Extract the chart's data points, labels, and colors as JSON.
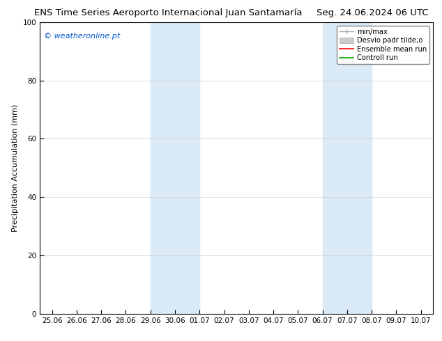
{
  "title_left": "ENS Time Series Aeroporto Internacional Juan Santamaría",
  "title_right": "Seg. 24.06.2024 06 UTC",
  "ylabel": "Precipitation Accumulation (mm)",
  "ylim": [
    0,
    100
  ],
  "yticks": [
    0,
    20,
    40,
    60,
    80,
    100
  ],
  "xtick_labels": [
    "25.06",
    "26.06",
    "27.06",
    "28.06",
    "29.06",
    "30.06",
    "01.07",
    "02.07",
    "03.07",
    "04.07",
    "05.07",
    "06.07",
    "07.07",
    "08.07",
    "09.07",
    "10.07"
  ],
  "xtick_positions": [
    0,
    1,
    2,
    3,
    4,
    5,
    6,
    7,
    8,
    9,
    10,
    11,
    12,
    13,
    14,
    15
  ],
  "shaded_regions": [
    {
      "xmin": 4,
      "xmax": 6,
      "color": "#daeaf7"
    },
    {
      "xmin": 11,
      "xmax": 13,
      "color": "#daeaf7"
    }
  ],
  "watermark_text": "© weatheronline.pt",
  "watermark_color": "#0055cc",
  "bg_color": "#ffffff",
  "grid_color": "#cccccc",
  "title_fontsize": 9.5,
  "axis_label_fontsize": 8,
  "tick_fontsize": 7.5,
  "minmax_color": "#aaaaaa",
  "desvio_color": "#cccccc",
  "ensemble_color": "#ff0000",
  "controll_color": "#00aa00"
}
